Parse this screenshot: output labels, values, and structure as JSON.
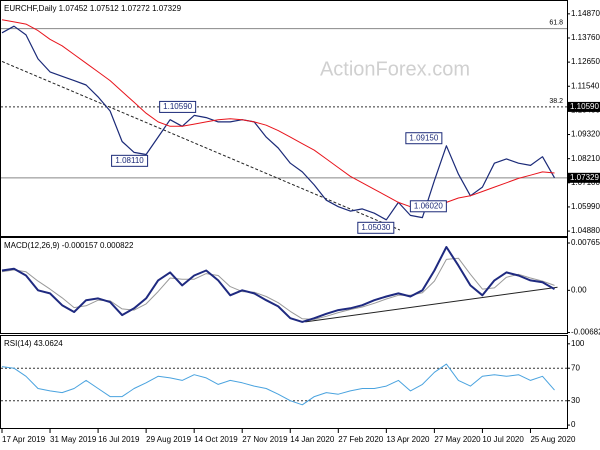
{
  "chart_data": [
    {
      "type": "line",
      "title": "EURCHF,Daily 1.07452 1.07512 1.07272 1.07329",
      "watermark": "ActionForex.com",
      "xlim": [
        0,
        375
      ],
      "ylim": [
        1.04653,
        1.15415
      ],
      "yticks": [
        {
          "value": 1.1487,
          "label": "1.14870"
        },
        {
          "value": 1.1376,
          "label": "1.13760"
        },
        {
          "value": 1.1265,
          "label": "1.12650"
        },
        {
          "value": 1.1154,
          "label": "1.11540"
        },
        {
          "value": 1.1043,
          "label": "1.10430"
        },
        {
          "value": 1.0932,
          "label": "1.09320"
        },
        {
          "value": 1.0821,
          "label": "1.08210"
        },
        {
          "value": 1.071,
          "label": "1.07100"
        },
        {
          "value": 1.0599,
          "label": "1.05990"
        },
        {
          "value": 1.0488,
          "label": "1.04880"
        }
      ],
      "x": [
        0,
        8,
        16,
        24,
        32,
        40,
        48,
        56,
        64,
        72,
        80,
        88,
        96,
        104,
        112,
        120,
        128,
        136,
        144,
        152,
        160,
        168,
        176,
        184,
        192,
        200,
        208,
        216,
        224,
        232,
        240,
        248,
        256,
        264,
        272,
        280,
        288,
        296,
        304,
        312,
        320,
        328,
        336,
        344,
        352,
        360,
        368
      ],
      "series": [
        {
          "name": "EURCHF",
          "color": "#1b2a78",
          "width": 1.2,
          "values": [
            1.14,
            1.143,
            1.139,
            1.128,
            1.122,
            1.12,
            1.118,
            1.116,
            1.1105,
            1.104,
            1.09,
            1.085,
            1.084,
            1.092,
            1.1,
            1.097,
            1.102,
            1.101,
            1.099,
            1.099,
            1.1,
            1.099,
            1.092,
            1.087,
            1.08,
            1.076,
            1.07,
            1.063,
            1.06,
            1.058,
            1.059,
            1.057,
            1.054,
            1.062,
            1.056,
            1.055,
            1.072,
            1.088,
            1.075,
            1.065,
            1.069,
            1.08,
            1.082,
            1.08,
            1.079,
            1.083,
            1.0733
          ]
        },
        {
          "name": "MA",
          "color": "#e8141c",
          "width": 1,
          "values": [
            1.146,
            1.145,
            1.144,
            1.141,
            1.137,
            1.134,
            1.13,
            1.126,
            1.122,
            1.118,
            1.113,
            1.108,
            1.103,
            1.099,
            1.097,
            1.097,
            1.098,
            1.099,
            1.1,
            1.1005,
            1.1,
            1.099,
            1.0975,
            1.095,
            1.092,
            1.089,
            1.086,
            1.082,
            1.078,
            1.074,
            1.071,
            1.068,
            1.065,
            1.062,
            1.06,
            1.059,
            1.06,
            1.062,
            1.064,
            1.065,
            1.067,
            1.069,
            1.071,
            1.073,
            1.0745,
            1.076,
            1.0755
          ]
        }
      ],
      "levels": [
        {
          "label": "61.8",
          "value": 1.1419,
          "dashed": false
        },
        {
          "label": "38.2",
          "value": 1.1059,
          "dashed": true,
          "axis_label": "1.10590"
        },
        {
          "value": 1.07329,
          "dashed": false,
          "axis_label": "1.07329"
        }
      ],
      "trendlines": [
        {
          "x": [
            0,
            265
          ],
          "values": [
            1.1268,
            1.0493
          ],
          "dashed": true,
          "color": "#222"
        }
      ],
      "annotations": [
        {
          "text": "1.08110",
          "x": 73,
          "value": 1.0811
        },
        {
          "text": "1.10590",
          "x": 105,
          "value": 1.1059
        },
        {
          "text": "1.09150",
          "x": 269,
          "value": 1.0915
        },
        {
          "text": "1.06020",
          "x": 272,
          "value": 1.0602
        },
        {
          "text": "1.05030",
          "x": 237,
          "value": 1.0503
        }
      ]
    },
    {
      "type": "line",
      "title": "MACD(12,26,9) -0.000157 0.000822",
      "xlim": [
        0,
        375
      ],
      "ylim": [
        -0.0069,
        0.0083
      ],
      "yticks": [
        0.007655,
        {
          "value": 0,
          "label": "0.00"
        },
        -0.006822
      ],
      "x": [
        0,
        8,
        16,
        24,
        32,
        40,
        48,
        56,
        64,
        72,
        80,
        88,
        96,
        104,
        112,
        120,
        128,
        136,
        144,
        152,
        160,
        168,
        176,
        184,
        192,
        200,
        208,
        216,
        224,
        232,
        240,
        248,
        256,
        264,
        272,
        280,
        288,
        296,
        304,
        312,
        320,
        328,
        336,
        344,
        352,
        360,
        368
      ],
      "series": [
        {
          "name": "Signal",
          "color": "#9a9a9a",
          "width": 1,
          "values": [
            0.003,
            0.0033,
            0.003,
            0.0015,
            0.0002,
            -0.0012,
            -0.0028,
            -0.0025,
            -0.0016,
            -0.0017,
            -0.003,
            -0.0032,
            -0.0022,
            -0.0002,
            0.002,
            0.0018,
            0.0018,
            0.0027,
            0.0024,
            0.0006,
            -0.0002,
            -0.0003,
            -0.001,
            -0.002,
            -0.0034,
            -0.0046,
            -0.0047,
            -0.0042,
            -0.0036,
            -0.0031,
            -0.0027,
            -0.0021,
            -0.0014,
            -0.0008,
            -0.0008,
            -0.0004,
            0.0015,
            0.005,
            0.0052,
            0.0026,
            0.0002,
            0.0004,
            0.0021,
            0.0026,
            0.002,
            0.0015,
            0.0008
          ]
        },
        {
          "name": "MACD",
          "color": "#1f2a80",
          "width": 2,
          "values": [
            0.0032,
            0.0035,
            0.0024,
            0,
            -0.0005,
            -0.0024,
            -0.0035,
            -0.0016,
            -0.0013,
            -0.0019,
            -0.004,
            -0.0029,
            -0.0013,
            0.0016,
            0.0029,
            0.0008,
            0.0024,
            0.0032,
            0.0016,
            -0.0008,
            0,
            -0.0005,
            -0.0016,
            -0.0026,
            -0.0045,
            -0.0051,
            -0.0045,
            -0.0038,
            -0.0032,
            -0.0029,
            -0.0024,
            -0.0016,
            -0.001,
            -0.0005,
            -0.001,
            0,
            0.0032,
            0.007,
            0.004,
            0.0008,
            -0.0008,
            0.0016,
            0.0029,
            0.0024,
            0.0016,
            0.0013,
            0.0002
          ]
        }
      ],
      "trendlines": [
        {
          "x": [
            202,
            370
          ],
          "values": [
            -0.0051,
            0.0005
          ],
          "dashed": false,
          "color": "#222"
        }
      ]
    },
    {
      "type": "line",
      "title": "RSI(14) 43.0624",
      "xlim": [
        0,
        375
      ],
      "ylim": [
        -3.6,
        108.4
      ],
      "yticks": [
        100,
        70,
        30,
        0
      ],
      "x": [
        0,
        8,
        16,
        24,
        32,
        40,
        48,
        56,
        64,
        72,
        80,
        88,
        96,
        104,
        112,
        120,
        128,
        136,
        144,
        152,
        160,
        168,
        176,
        184,
        192,
        200,
        208,
        216,
        224,
        232,
        240,
        248,
        256,
        264,
        272,
        280,
        288,
        296,
        304,
        312,
        320,
        328,
        336,
        344,
        352,
        360,
        368
      ],
      "series": [
        {
          "name": "RSI",
          "color": "#4aa3df",
          "width": 1,
          "values": [
            72,
            70,
            60,
            45,
            42,
            40,
            45,
            55,
            45,
            35,
            35,
            45,
            52,
            60,
            58,
            55,
            62,
            58,
            50,
            55,
            52,
            48,
            45,
            38,
            30,
            25,
            35,
            40,
            38,
            42,
            45,
            45,
            48,
            55,
            42,
            50,
            65,
            75,
            55,
            48,
            60,
            62,
            60,
            62,
            55,
            60,
            43
          ]
        }
      ],
      "levels": [
        {
          "value": 70,
          "dashed": true
        },
        {
          "value": 30,
          "dashed": true
        }
      ],
      "xticks": [
        {
          "value": 0,
          "label": "17 Apr 2019"
        },
        {
          "value": 32,
          "label": "31 May 2019"
        },
        {
          "value": 64,
          "label": "16 Jul 2019"
        },
        {
          "value": 96,
          "label": "29 Aug 2019"
        },
        {
          "value": 128,
          "label": "14 Oct 2019"
        },
        {
          "value": 160,
          "label": "27 Nov 2019"
        },
        {
          "value": 192,
          "label": "14 Jan 2020"
        },
        {
          "value": 224,
          "label": "27 Feb 2020"
        },
        {
          "value": 256,
          "label": "13 Apr 2020"
        },
        {
          "value": 288,
          "label": "27 May 2020"
        },
        {
          "value": 320,
          "label": "10 Jul 2020"
        },
        {
          "value": 352,
          "label": "25 Aug 2020"
        }
      ]
    }
  ]
}
